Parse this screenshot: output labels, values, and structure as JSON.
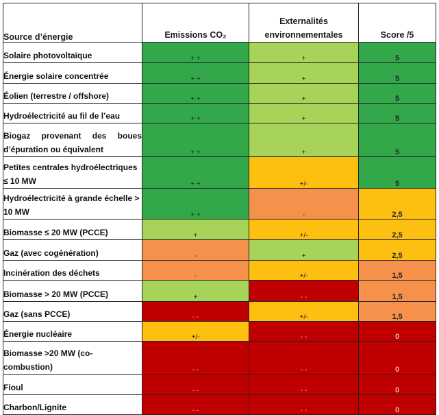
{
  "colors": {
    "dark_green": "#33a84a",
    "light_green": "#a6d358",
    "yellow": "#fdc010",
    "orange": "#f5914a",
    "red": "#c00000"
  },
  "header": {
    "source": "Source d’énergie",
    "emissions": "Emissions CO₂",
    "externalites": "Externalités environnementales",
    "score": "Score /5"
  },
  "rows": [
    {
      "source": "Solaire photovoltaïque",
      "emissions": "+ +",
      "emissions_color": "dark_green",
      "externalites": "+",
      "externalites_color": "light_green",
      "score": "5",
      "score_color": "dark_green"
    },
    {
      "source": "Énergie solaire concentrée",
      "emissions": "+ +",
      "emissions_color": "dark_green",
      "externalites": "+",
      "externalites_color": "light_green",
      "score": "5",
      "score_color": "dark_green"
    },
    {
      "source": "Éolien (terrestre / offshore)",
      "emissions": "+ +",
      "emissions_color": "dark_green",
      "externalites": "+",
      "externalites_color": "light_green",
      "score": "5",
      "score_color": "dark_green"
    },
    {
      "source": "Hydroélectricité au fil de l’eau",
      "emissions": "+ +",
      "emissions_color": "dark_green",
      "externalites": "+",
      "externalites_color": "light_green",
      "score": "5",
      "score_color": "dark_green"
    },
    {
      "source": "Biogaz provenant des boues d’épuration ou équivalent",
      "emissions": "+ +",
      "emissions_color": "dark_green",
      "externalites": "+",
      "externalites_color": "light_green",
      "score": "5",
      "score_color": "dark_green"
    },
    {
      "source": "Petites centrales hydroélectriques ≤ 10 MW",
      "emissions": "+ +",
      "emissions_color": "dark_green",
      "externalites": "+/-",
      "externalites_color": "yellow",
      "score": "5",
      "score_color": "dark_green"
    },
    {
      "source": "Hydroélectricité à grande échelle > 10 MW",
      "emissions": "+ +",
      "emissions_color": "dark_green",
      "externalites": "-",
      "externalites_color": "orange",
      "score": "2,5",
      "score_color": "yellow"
    },
    {
      "source": "Biomasse ≤ 20 MW (PCCE)",
      "emissions": "+",
      "emissions_color": "light_green",
      "externalites": "+/-",
      "externalites_color": "yellow",
      "score": "2,5",
      "score_color": "yellow"
    },
    {
      "source": "Gaz (avec cogénération)",
      "emissions": "-",
      "emissions_color": "orange",
      "externalites": "+",
      "externalites_color": "light_green",
      "score": "2,5",
      "score_color": "yellow"
    },
    {
      "source": "Incinération des déchets",
      "emissions": "-",
      "emissions_color": "orange",
      "externalites": "+/-",
      "externalites_color": "yellow",
      "score": "1,5",
      "score_color": "orange"
    },
    {
      "source": "Biomasse > 20 MW (PCCE)",
      "emissions": "+",
      "emissions_color": "light_green",
      "externalites": "- -",
      "externalites_color": "red",
      "score": "1,5",
      "score_color": "orange"
    },
    {
      "source": "Gaz (sans PCCE)",
      "emissions": "- -",
      "emissions_color": "red",
      "externalites": "+/-",
      "externalites_color": "yellow",
      "score": "1,5",
      "score_color": "orange"
    },
    {
      "source": "Énergie nucléaire",
      "emissions": "+/-",
      "emissions_color": "yellow",
      "externalites": "- -",
      "externalites_color": "red",
      "score": "0",
      "score_color": "red"
    },
    {
      "source": "Biomasse >20 MW (co-combustion)",
      "emissions": "- -",
      "emissions_color": "red",
      "externalites": "- -",
      "externalites_color": "red",
      "score": "0",
      "score_color": "red"
    },
    {
      "source": "Fioul",
      "emissions": "- -",
      "emissions_color": "red",
      "externalites": "- -",
      "externalites_color": "red",
      "score": "0",
      "score_color": "red"
    },
    {
      "source": "Charbon/Lignite",
      "emissions": "- -",
      "emissions_color": "red",
      "externalites": "- -",
      "externalites_color": "red",
      "score": "0",
      "score_color": "red"
    }
  ]
}
